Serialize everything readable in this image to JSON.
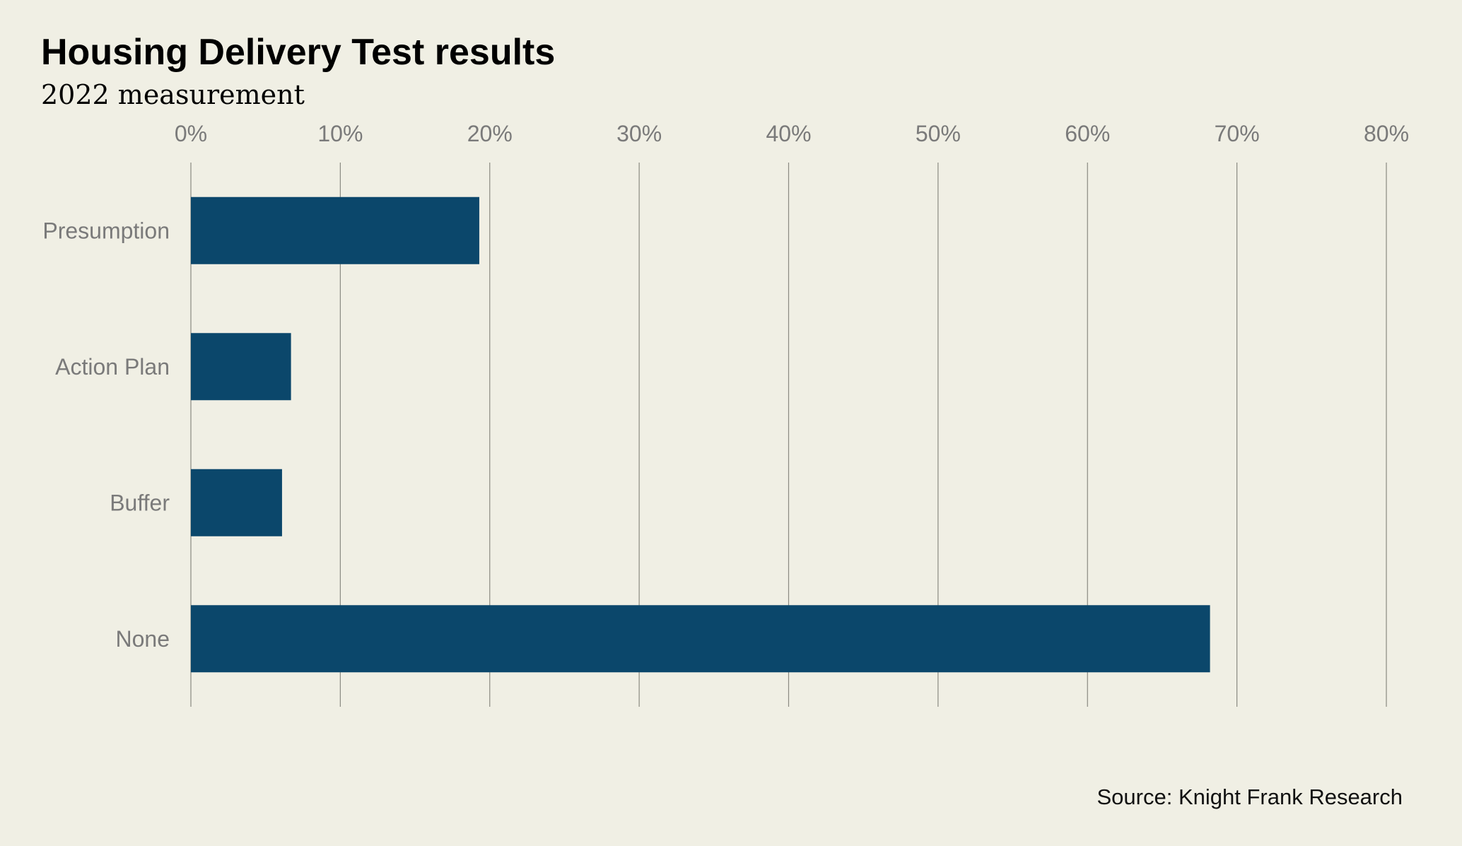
{
  "chart_data": {
    "type": "bar",
    "orientation": "horizontal",
    "title": "Housing Delivery Test results",
    "subtitle": "2022 measurement",
    "categories": [
      "Presumption",
      "Action Plan",
      "Buffer",
      "None"
    ],
    "values": [
      19.3,
      6.7,
      6.1,
      68.2
    ],
    "value_unit": "%",
    "xlim": [
      0,
      80
    ],
    "x_ticks": [
      0,
      10,
      20,
      30,
      40,
      50,
      60,
      70,
      80
    ],
    "x_tick_labels": [
      "0%",
      "10%",
      "20%",
      "30%",
      "40%",
      "50%",
      "60%",
      "70%",
      "80%"
    ],
    "x_axis_position": "top",
    "grid": "vertical",
    "legend": "none",
    "source": "Source: Knight Frank Research",
    "colors": {
      "bar": "#0b476b",
      "background": "#f0efe4",
      "grid": "#8a8a82",
      "label": "#7a7a7a"
    }
  }
}
